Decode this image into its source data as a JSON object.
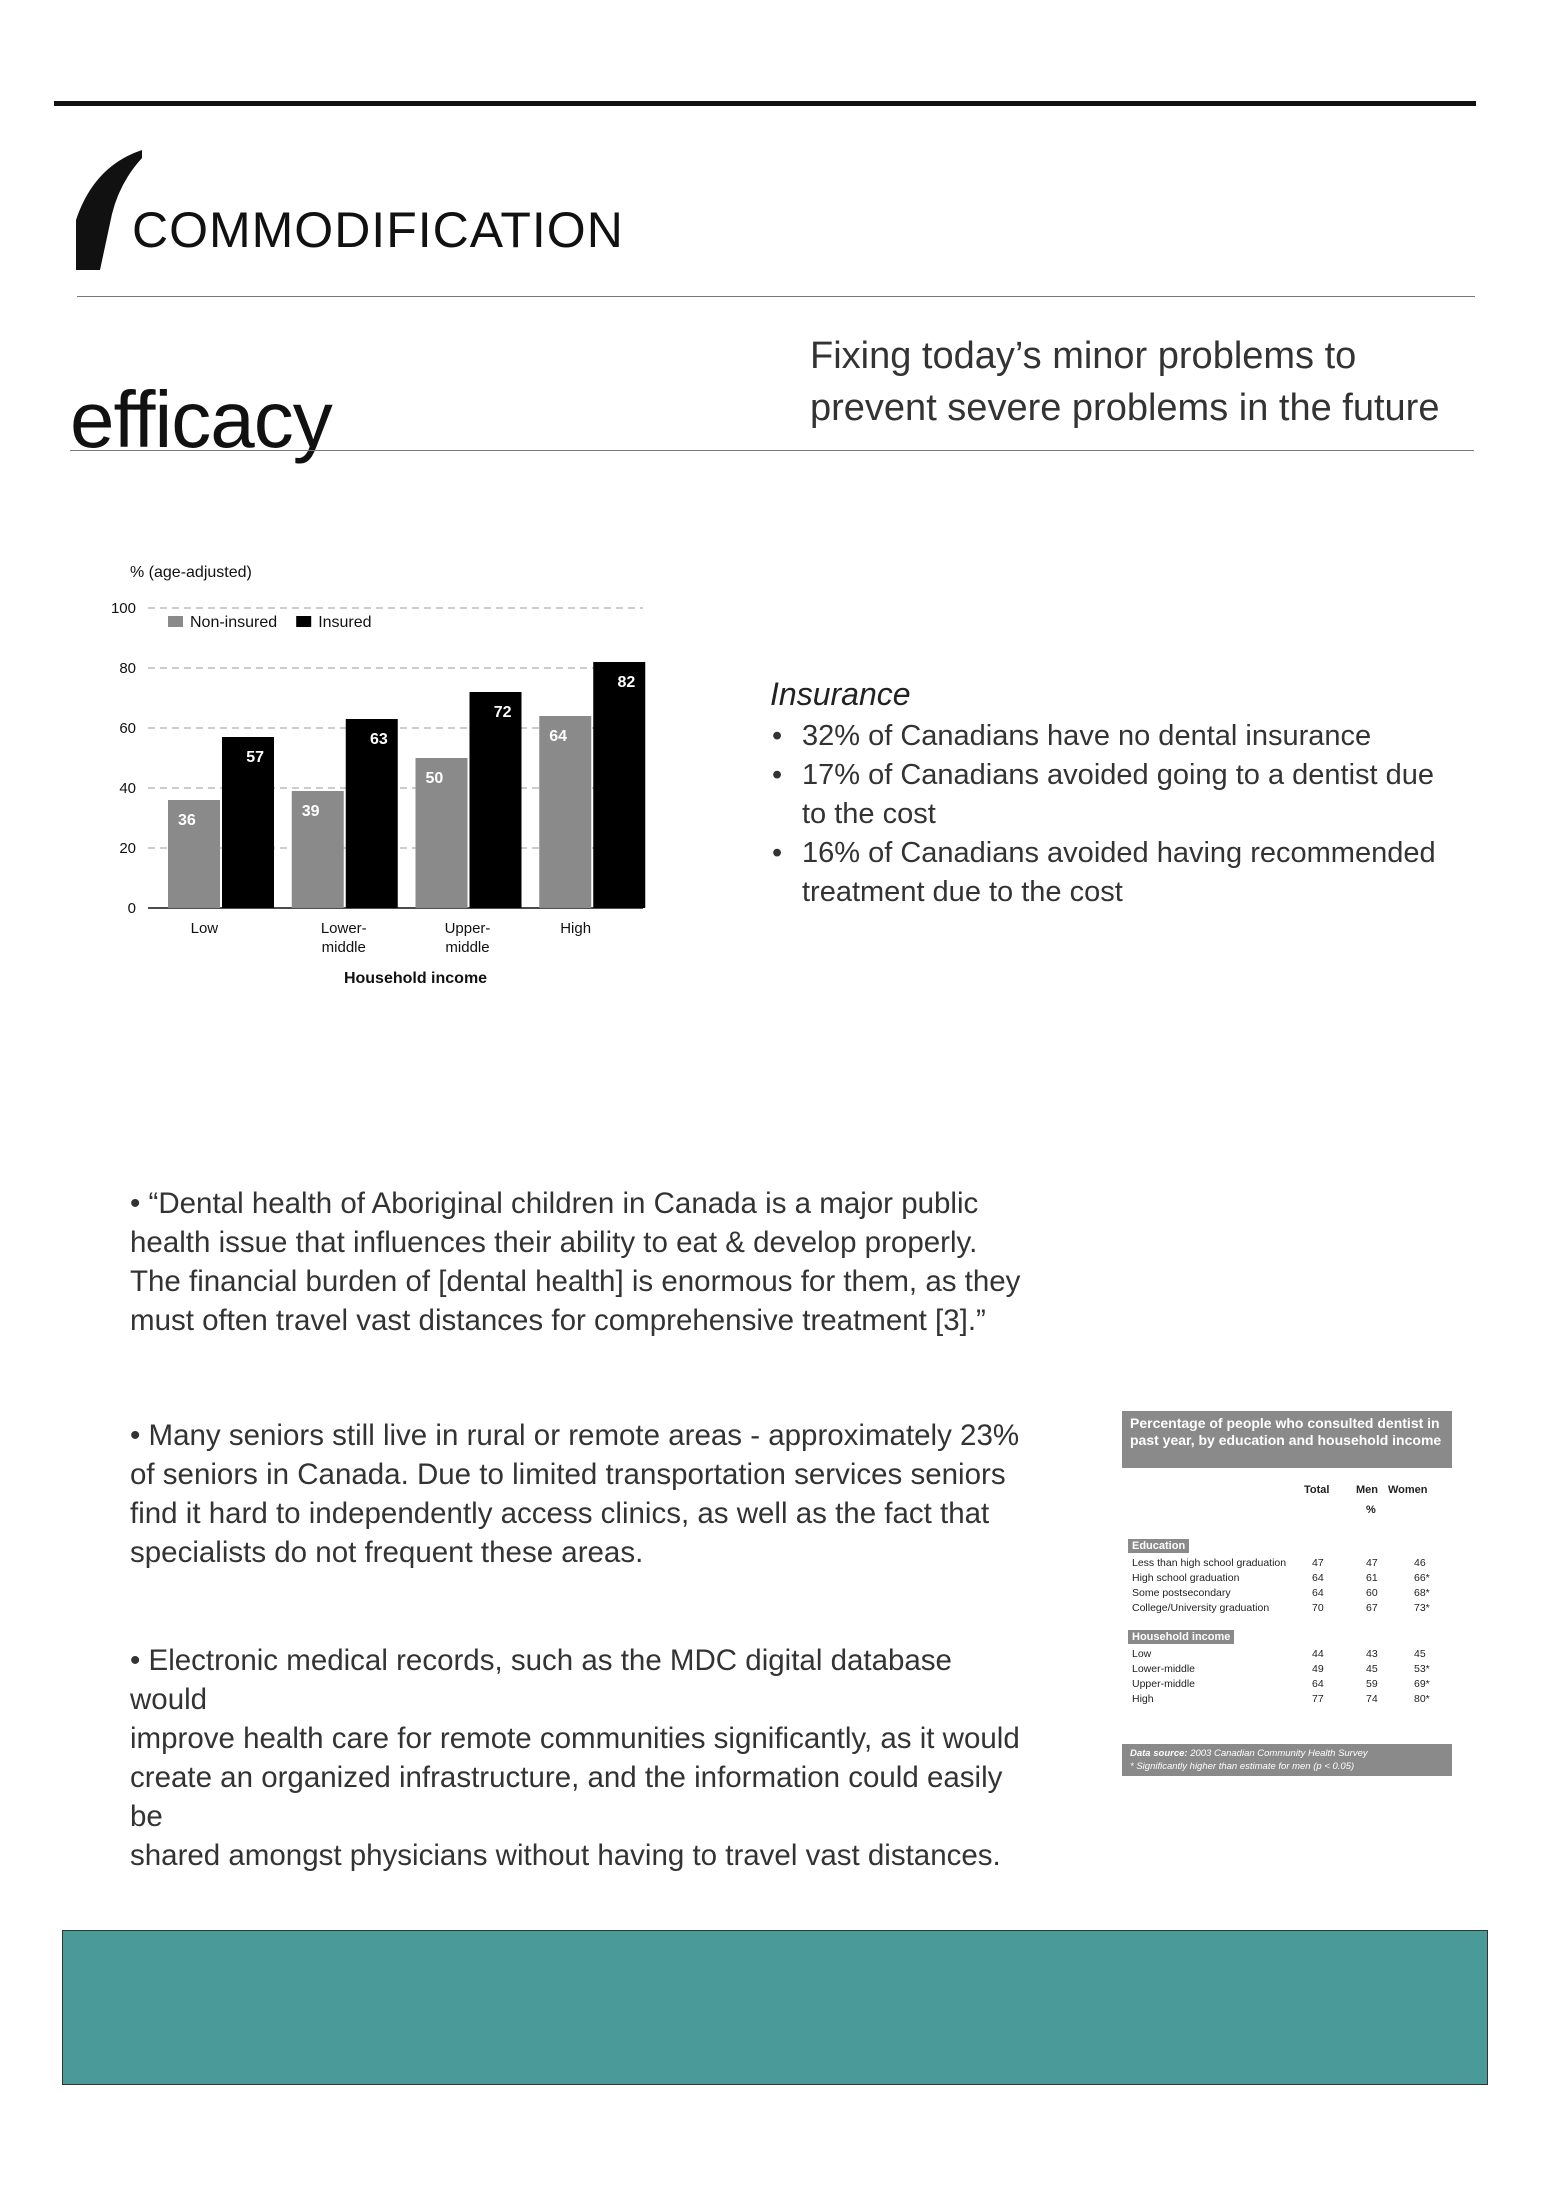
{
  "header": {
    "section_title": "COMMODIFICATION",
    "title": "efficacy",
    "tagline": "Fixing today’s minor problems to prevent severe problems in the future"
  },
  "chart_data": {
    "type": "bar",
    "ylabel": "% (age-adjusted)",
    "xlabel": "Household income",
    "categories": [
      "Low",
      "Lower-\nmiddle",
      "Upper-\nmiddle",
      "High"
    ],
    "series": [
      {
        "name": "Non-insured",
        "values": [
          36,
          39,
          50,
          64
        ],
        "color": "#8a8a8a"
      },
      {
        "name": "Insured",
        "values": [
          57,
          63,
          72,
          82
        ],
        "color": "#000000"
      }
    ],
    "ylim": [
      0,
      100
    ],
    "yticks": [
      0,
      20,
      40,
      60,
      80,
      100
    ],
    "grid": true,
    "legend_position": "top-left"
  },
  "insurance": {
    "title": "Insurance",
    "items": [
      "32% of Canadians have no dental insurance",
      "17% of Canadians avoided going to a dentist due to the cost",
      "16% of Canadians avoided having recommended treatment due to the cost"
    ]
  },
  "paragraphs": [
    "•  “Dental health of Aboriginal children in Canada is a major public\nhealth issue that influences their ability to eat & develop properly.\n The financial burden of [dental health] is enormous for them, as they\nmust often travel vast distances for comprehensive treatment [3].”",
    "•  Many seniors still live in rural or remote areas - approximately 23%\nof seniors in Canada. Due to limited transportation services seniors\nfind it hard to independently access clinics, as well as the fact that\n specialists do not frequent these areas.",
    "•  Electronic medical records, such as the MDC digital database would\nimprove health care for remote communities significantly, as it would\ncreate an organized infrastructure, and the information could easily be\nshared amongst physicians without having to travel vast distances."
  ],
  "consult_table": {
    "title": "Percentage of people who consulted dentist in past year, by education and household income",
    "col_total": "Total",
    "col_men": "Men",
    "col_women": "Women",
    "unit": "%",
    "groups": [
      {
        "label": "Education",
        "rows": [
          {
            "label": "Less than high school graduation",
            "total": "47",
            "men": "47",
            "women": "46"
          },
          {
            "label": "High school graduation",
            "total": "64",
            "men": "61",
            "women": "66*"
          },
          {
            "label": "Some postsecondary",
            "total": "64",
            "men": "60",
            "women": "68*"
          },
          {
            "label": "College/University graduation",
            "total": "70",
            "men": "67",
            "women": "73*"
          }
        ]
      },
      {
        "label": "Household income",
        "rows": [
          {
            "label": "Low",
            "total": "44",
            "men": "43",
            "women": "45"
          },
          {
            "label": "Lower-middle",
            "total": "49",
            "men": "45",
            "women": "53*"
          },
          {
            "label": "Upper-middle",
            "total": "64",
            "men": "59",
            "women": "69*"
          },
          {
            "label": "High",
            "total": "77",
            "men": "74",
            "women": "80*"
          }
        ]
      }
    ],
    "source_label": "Data source:",
    "source": "2003 Canadian Community Health Survey",
    "note": "* Significantly higher than estimate for men (p < 0.05)"
  },
  "colors": {
    "band": "#4a9a9a"
  }
}
